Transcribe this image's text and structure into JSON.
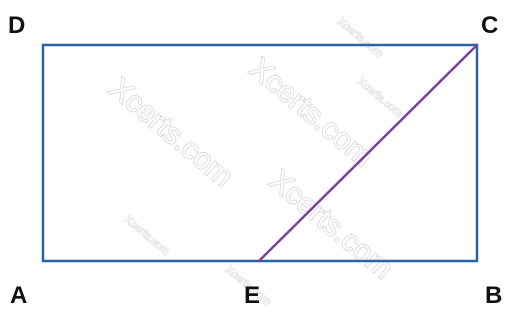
{
  "labels": {
    "A": "A",
    "B": "B",
    "C": "C",
    "D": "D",
    "E": "E"
  },
  "watermarks": {
    "large_1": "Xcerts.com",
    "large_2": "Xcerts.com",
    "large_3": "Xcerts.com",
    "small_1": "Xcerts.com",
    "small_2": "Xcerts.com",
    "small_3": "Xcerts.com",
    "small_4": "Xcerts.com"
  },
  "colors": {
    "rectangle": "#2a63a8",
    "diagonal": "#7b3fa0",
    "label": "#111111"
  }
}
